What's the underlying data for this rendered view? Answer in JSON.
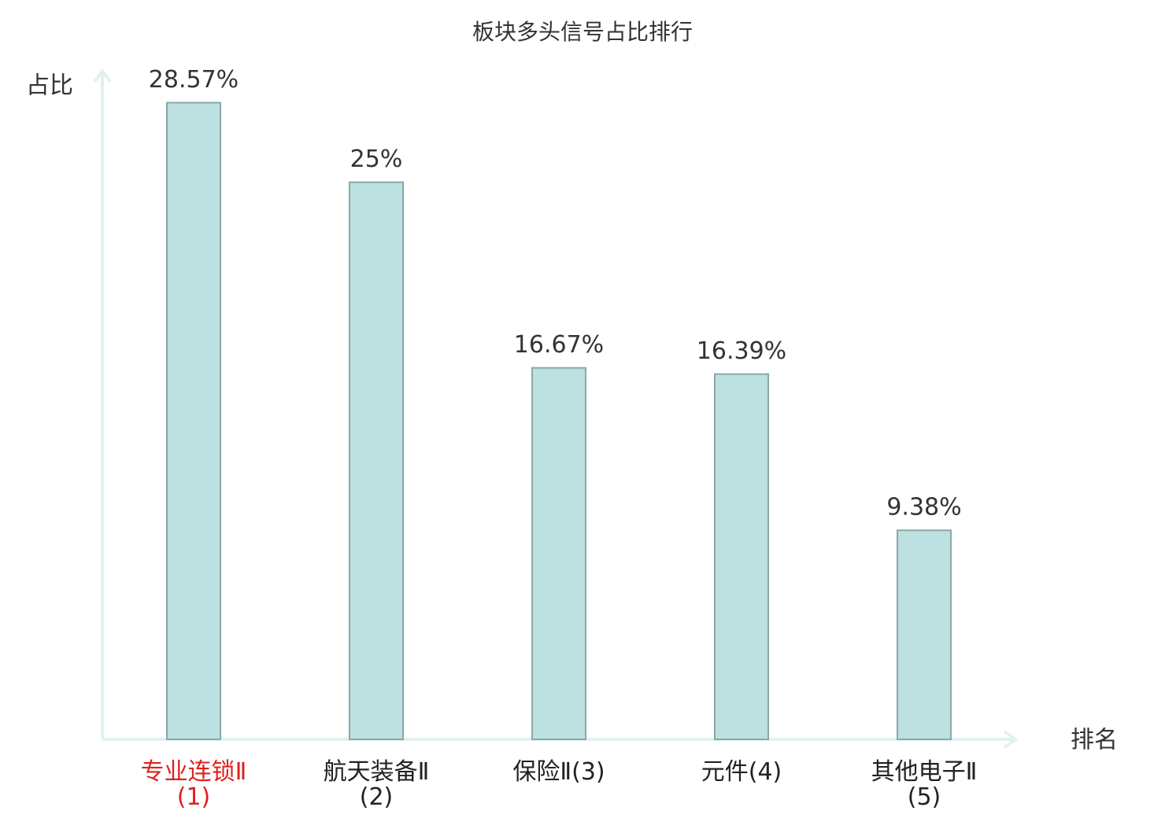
{
  "chart_data": {
    "type": "bar",
    "title": "板块多头信号占比排行",
    "y_label": "占比",
    "x_label": "排名",
    "categories": [
      "专业连锁Ⅱ(1)",
      "航天装备Ⅱ(2)",
      "保险Ⅱ(3)",
      "元件(4)",
      "其他电子Ⅱ(5)"
    ],
    "category_label_colors": [
      "#e02020",
      "#222222",
      "#222222",
      "#222222",
      "#222222"
    ],
    "values": [
      28.57,
      25,
      16.67,
      16.39,
      9.38
    ],
    "value_labels": [
      "28.57%",
      "25%",
      "16.67%",
      "16.39%",
      "9.38%"
    ],
    "color": "#bde0e1",
    "edge_color": "#8aa8a8",
    "axis_color": "#dff2ef",
    "ylim": [
      0,
      30
    ]
  }
}
